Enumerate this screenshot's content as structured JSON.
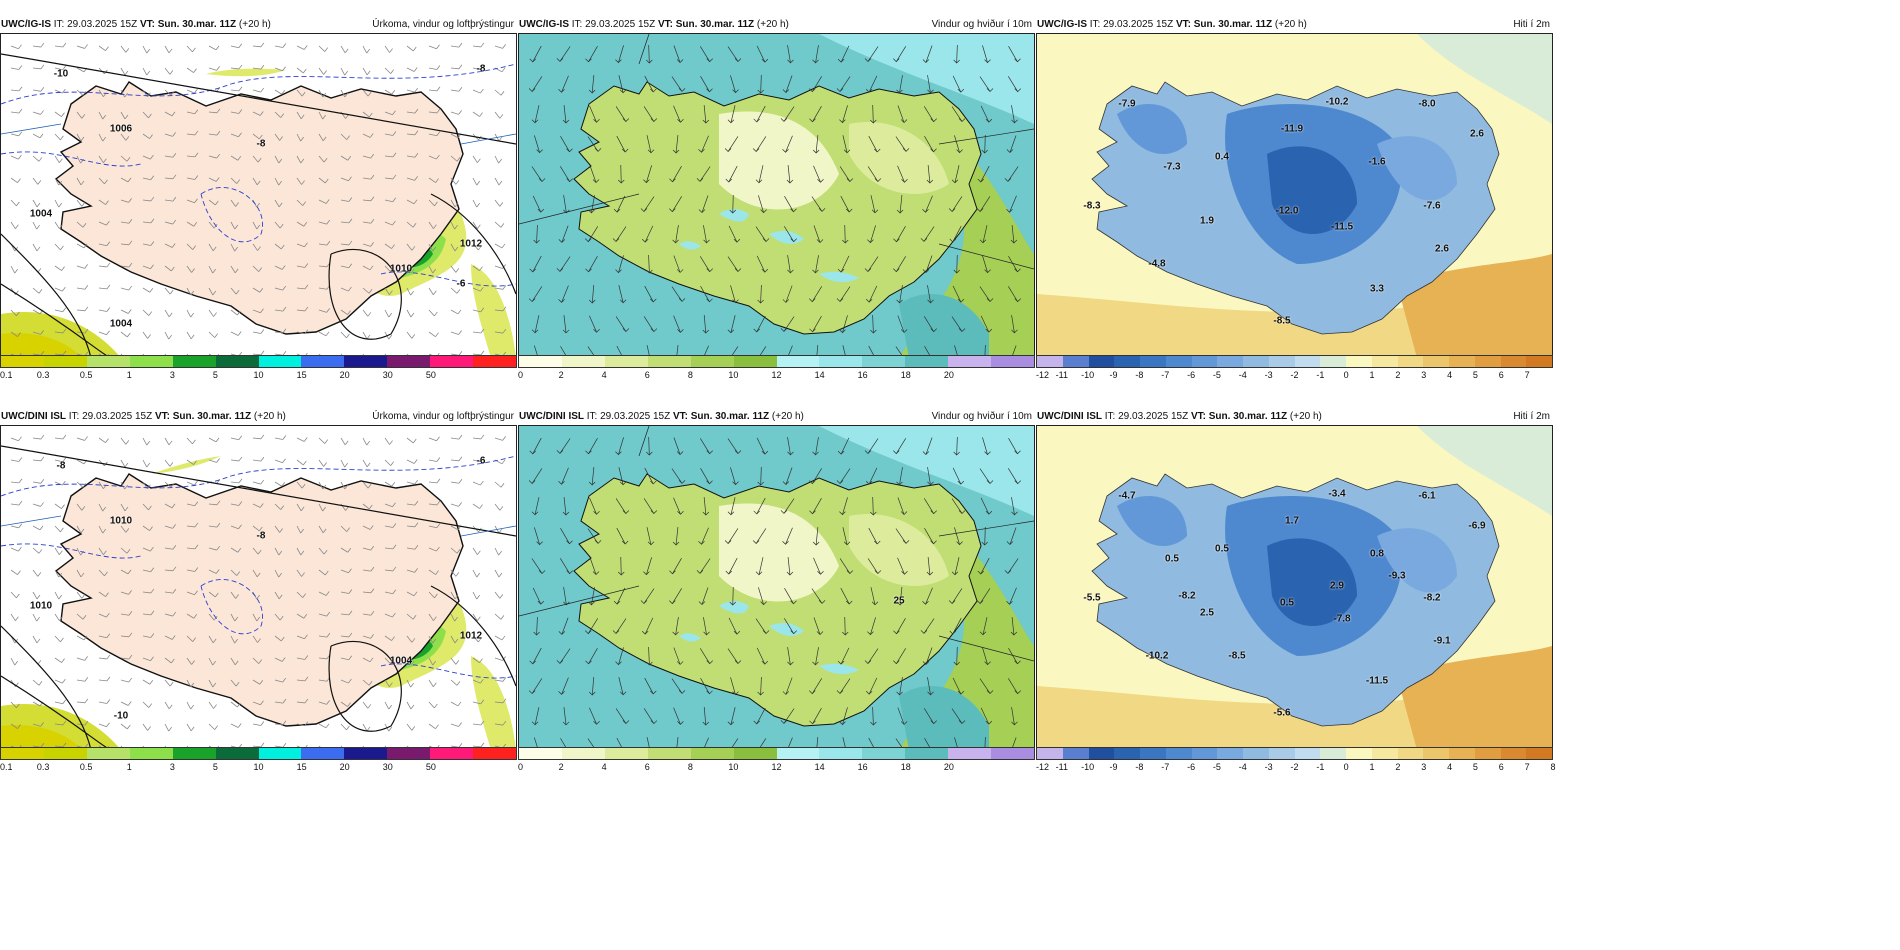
{
  "rows": [
    {
      "panels": [
        {
          "model": "UWC/IG-IS",
          "it_label": "IT:",
          "it": "29.03.2025 15Z",
          "vt_label": "VT:",
          "vt": "Sun. 30.mar. 11Z",
          "lead": "(+20 h)",
          "title": "Úrkoma, vindur og loftþrýstingur",
          "kind": "precip",
          "map_labels": [
            "1006",
            "1004",
            "1010",
            "1012",
            "1004",
            "-10",
            "-8",
            "-8",
            "-6"
          ]
        },
        {
          "model": "UWC/IG-IS",
          "it_label": "IT:",
          "it": "29.03.2025 15Z",
          "vt_label": "VT:",
          "vt": "Sun. 30.mar. 11Z",
          "lead": "(+20 h)",
          "title": "Vindur og hviður í 10m",
          "kind": "wind",
          "map_labels": []
        },
        {
          "model": "UWC/IG-IS",
          "it_label": "IT:",
          "it": "29.03.2025 15Z",
          "vt_label": "VT:",
          "vt": "Sun. 30.mar. 11Z",
          "lead": "(+20 h)",
          "title": "Hiti í 2m",
          "kind": "temp",
          "map_labels": [
            "-7.9",
            "-10.2",
            "-8.0",
            "-11.9",
            "0.4",
            "-7.3",
            "-1.6",
            "2.6",
            "-8.3",
            "1.9",
            "-12.0",
            "-11.5",
            "-7.6",
            "2.6",
            "-4.8",
            "3.3",
            "-8.5"
          ]
        }
      ]
    },
    {
      "panels": [
        {
          "model": "UWC/DINI ISL",
          "it_label": "IT:",
          "it": "29.03.2025 15Z",
          "vt_label": "VT:",
          "vt": "Sun. 30.mar. 11Z",
          "lead": "(+20 h)",
          "title": "Úrkoma, vindur og loftþrýstingur",
          "kind": "precip",
          "map_labels": [
            "1010",
            "1010",
            "1004",
            "1012",
            "-10",
            "-8",
            "-8",
            "-6"
          ]
        },
        {
          "model": "UWC/DINI ISL",
          "it_label": "IT:",
          "it": "29.03.2025 15Z",
          "vt_label": "VT:",
          "vt": "Sun. 30.mar. 11Z",
          "lead": "(+20 h)",
          "title": "Vindur og hviður í 10m",
          "kind": "wind",
          "map_labels": [
            "25"
          ]
        },
        {
          "model": "UWC/DINI ISL",
          "it_label": "IT:",
          "it": "29.03.2025 15Z",
          "vt_label": "VT:",
          "vt": "Sun. 30.mar. 11Z",
          "lead": "(+20 h)",
          "title": "Hiti í 2m",
          "kind": "temp",
          "map_labels": [
            "-4.7",
            "-3.4",
            "-6.1",
            "1.7",
            "0.5",
            "0.5",
            "0.8",
            "-6.9",
            "-5.5",
            "2.5",
            "0.5",
            "-7.8",
            "-8.2",
            "-9.1",
            "-10.2",
            "-11.5",
            "-5.6",
            "-8.5",
            "2.9",
            "-9.3",
            "-8.2"
          ]
        }
      ]
    }
  ],
  "legends": {
    "precip": {
      "colors": [
        "#d7d200",
        "#c8d400",
        "#b7e26a",
        "#8ee04a",
        "#1aa32a",
        "#0b6b3a",
        "#00f0e0",
        "#3c6cf0",
        "#1a1a8e",
        "#7a1a6e",
        "#ff1a7a",
        "#ff2020"
      ],
      "labels": [
        "0.1",
        "0.3",
        "0.5",
        "1",
        "3",
        "5",
        "10",
        "15",
        "20",
        "30",
        "50"
      ]
    },
    "wind": {
      "colors": [
        "#fdfde8",
        "#f1f6c8",
        "#dcec9c",
        "#c1de74",
        "#a5cf55",
        "#8abf3e",
        "#b6f1f3",
        "#9be6ea",
        "#7dd2d4",
        "#5cbcbc",
        "#c9b3ee",
        "#a98de0"
      ],
      "labels": [
        "0",
        "2",
        "4",
        "6",
        "8",
        "10",
        "12",
        "14",
        "16",
        "18",
        "20"
      ]
    },
    "temp": {
      "colors": [
        "#c5b4ec",
        "#5b7fd0",
        "#1f4f9e",
        "#2a63b0",
        "#3a76c2",
        "#4e88cf",
        "#6298d8",
        "#79a9df",
        "#90badf",
        "#a9cbe8",
        "#c2dcef",
        "#d8ecd8",
        "#fbf7c0",
        "#f6e8a0",
        "#f1d884",
        "#ecc66a",
        "#e6b253",
        "#e09e40",
        "#d98a30",
        "#d27a22"
      ],
      "labels_top": [
        "-12",
        "-11",
        "-10",
        "-9",
        "-8",
        "-7",
        "-6",
        "-5",
        "-4",
        "-3",
        "-2",
        "-1",
        "0",
        "1",
        "2",
        "3",
        "4",
        "5",
        "6",
        "7"
      ],
      "labels_bottom": [
        "-12",
        "-11",
        "-10",
        "-9",
        "-8",
        "-7",
        "-6",
        "-5",
        "-4",
        "-3",
        "-2",
        "-1",
        "0",
        "1",
        "2",
        "3",
        "4",
        "5",
        "6",
        "7",
        "8"
      ]
    }
  }
}
